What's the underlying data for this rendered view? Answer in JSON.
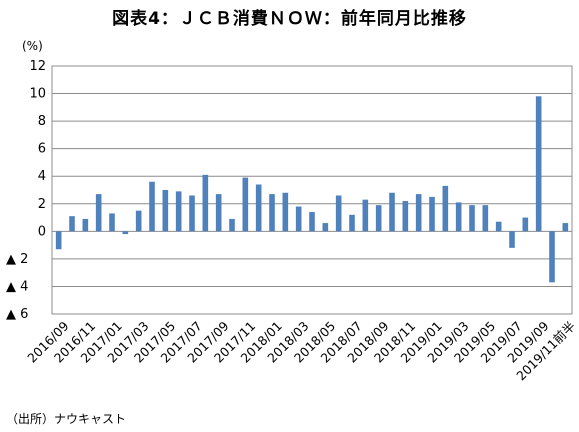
{
  "chart_data": {
    "type": "bar",
    "title": "図表4：ＪＣＢ消費ＮＯＷ：前年同月比推移",
    "ylabel": "(%)",
    "ylim": [
      -6,
      12
    ],
    "yticks": [
      12,
      10,
      8,
      6,
      4,
      2,
      0,
      -2,
      -4,
      -6
    ],
    "ytick_labels": [
      "12",
      "10",
      "8",
      "6",
      "4",
      "2",
      "0",
      "▲ 2",
      "▲ 4",
      "▲ 6"
    ],
    "grid": true,
    "bar_color": "#4f81bd",
    "categories": [
      "2016/09",
      "2016/10",
      "2016/11",
      "2016/12",
      "2017/01",
      "2017/02",
      "2017/03",
      "2017/04",
      "2017/05",
      "2017/06",
      "2017/07",
      "2017/08",
      "2017/09",
      "2017/10",
      "2017/11",
      "2017/12",
      "2018/01",
      "2018/02",
      "2018/03",
      "2018/04",
      "2018/05",
      "2018/06",
      "2018/07",
      "2018/08",
      "2018/09",
      "2018/10",
      "2018/11",
      "2018/12",
      "2019/01",
      "2019/02",
      "2019/03",
      "2019/04",
      "2019/05",
      "2019/06",
      "2019/07",
      "2019/08",
      "2019/09",
      "2019/10",
      "2019/11前半"
    ],
    "x_tick_labels": [
      "2016/09",
      "2016/11",
      "2017/01",
      "2017/03",
      "2017/05",
      "2017/07",
      "2017/09",
      "2017/11",
      "2018/01",
      "2018/03",
      "2018/05",
      "2018/07",
      "2018/09",
      "2018/11",
      "2019/01",
      "2019/03",
      "2019/05",
      "2019/07",
      "2019/09",
      "2019/11前半"
    ],
    "values": [
      -1.3,
      1.1,
      0.9,
      2.7,
      1.3,
      -0.2,
      1.5,
      3.6,
      3.0,
      2.9,
      2.6,
      4.1,
      2.7,
      0.9,
      3.9,
      3.4,
      2.7,
      2.8,
      1.8,
      1.4,
      0.6,
      2.6,
      1.2,
      2.3,
      1.9,
      2.8,
      2.2,
      2.7,
      2.5,
      3.3,
      2.1,
      1.9,
      1.9,
      0.7,
      -1.2,
      1.0,
      9.8,
      -3.7,
      0.6
    ]
  },
  "source": "（出所）ナウキャスト"
}
